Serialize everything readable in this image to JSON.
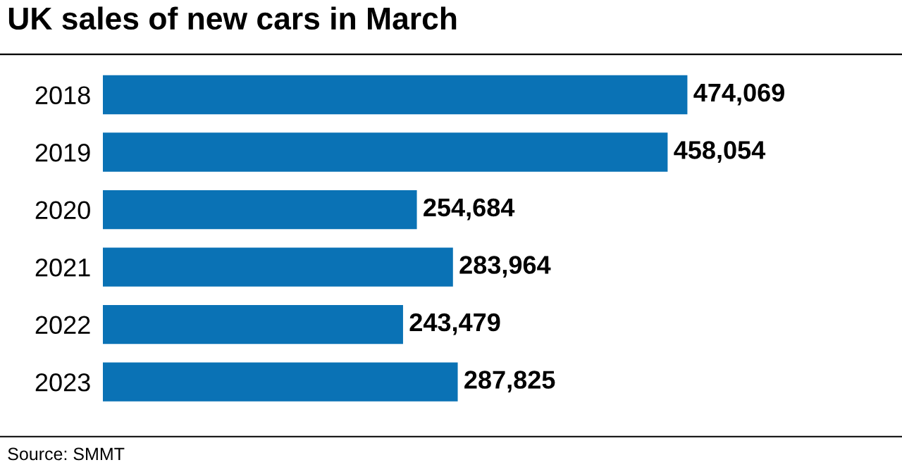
{
  "chart_data": {
    "type": "bar",
    "orientation": "horizontal",
    "title": "UK sales of new cars in March",
    "categories": [
      "2018",
      "2019",
      "2020",
      "2021",
      "2022",
      "2023"
    ],
    "values": [
      474069,
      458054,
      254684,
      283964,
      243479,
      287825
    ],
    "color": "#0a72b5",
    "value_labels": [
      "474,069",
      "458,054",
      "254,684",
      "283,964",
      "243,479",
      "287,825"
    ],
    "grid": false,
    "legend": false,
    "annotations": [
      "Source: SMMT"
    ]
  }
}
